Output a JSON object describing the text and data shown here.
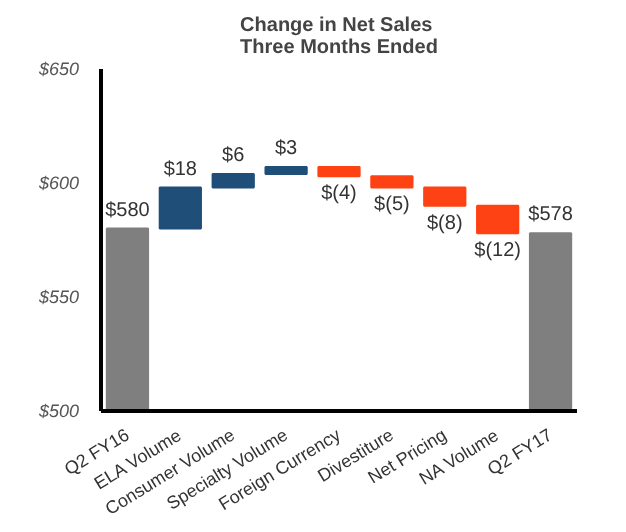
{
  "chart_data": {
    "type": "bar",
    "title": "Change in Net Sales\nThree Months Ended",
    "categories": [
      "Q2 FY16",
      "ELA Volume",
      "Consumer Volume",
      "Specialty Volume",
      "Foreign Currency",
      "Divestiture",
      "Net Pricing",
      "NA Volume",
      "Q2 FY17"
    ],
    "values": [
      580,
      18,
      6,
      3,
      -4,
      -5,
      -8,
      -12,
      578
    ],
    "base": [
      null,
      580,
      598,
      604,
      607,
      603,
      598,
      590,
      null
    ],
    "colors": [
      "#7f7f7f",
      "#1f4e79",
      "#1f4e79",
      "#1f4e79",
      "#ff4213",
      "#ff4213",
      "#ff4213",
      "#ff4213",
      "#7f7f7f"
    ],
    "value_labels": [
      "$580",
      "$18",
      "$6",
      "$3",
      "$(4)",
      "$(5)",
      "$(8)",
      "$(12)",
      "$578"
    ],
    "ylim": [
      500,
      650
    ],
    "yticks": [
      {
        "value": 500,
        "label": "$500"
      },
      {
        "value": 550,
        "label": "$550"
      },
      {
        "value": 600,
        "label": "$600"
      },
      {
        "value": 650,
        "label": "$650"
      }
    ],
    "grid": false
  }
}
